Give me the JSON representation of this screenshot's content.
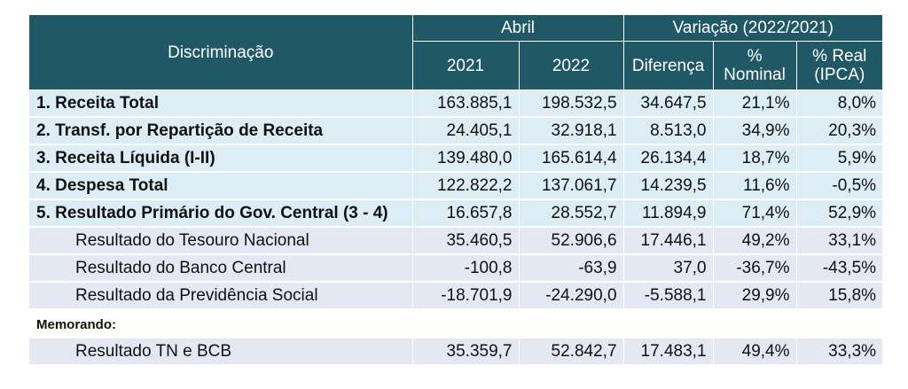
{
  "header": {
    "discriminacao": "Discriminação",
    "abril": "Abril",
    "variacao": "Variação (2022/2021)",
    "col_2021": "2021",
    "col_2022": "2022",
    "col_diferenca": "Diferença",
    "col_nominal": "% Nominal",
    "col_real": "% Real (IPCA)"
  },
  "rows": [
    {
      "label": "1. Receita Total",
      "v2021": "163.885,1",
      "v2022": "198.532,5",
      "diferenca": "34.647,5",
      "nominal": "21,1%",
      "real": "8,0%"
    },
    {
      "label": "2. Transf. por Repartição de Receita",
      "v2021": "24.405,1",
      "v2022": "32.918,1",
      "diferenca": "8.513,0",
      "nominal": "34,9%",
      "real": "20,3%"
    },
    {
      "label": "3. Receita Líquida (I-II)",
      "v2021": "139.480,0",
      "v2022": "165.614,4",
      "diferenca": "26.134,4",
      "nominal": "18,7%",
      "real": "5,9%"
    },
    {
      "label": "4. Despesa Total",
      "v2021": "122.822,2",
      "v2022": "137.061,7",
      "diferenca": "14.239,5",
      "nominal": "11,6%",
      "real": "-0,5%"
    },
    {
      "label": "5. Resultado Primário do Gov. Central (3 - 4)",
      "v2021": "16.657,8",
      "v2022": "28.552,7",
      "diferenca": "11.894,9",
      "nominal": "71,4%",
      "real": "52,9%"
    },
    {
      "label": "Resultado do Tesouro Nacional",
      "v2021": "35.460,5",
      "v2022": "52.906,6",
      "diferenca": "17.446,1",
      "nominal": "49,2%",
      "real": "33,1%"
    },
    {
      "label": "Resultado do Banco Central",
      "v2021": "-100,8",
      "v2022": "-63,9",
      "diferenca": "37,0",
      "nominal": "-36,7%",
      "real": "-43,5%"
    },
    {
      "label": "Resultado da Previdência Social",
      "v2021": "-18.701,9",
      "v2022": "-24.290,0",
      "diferenca": "-5.588,1",
      "nominal": "29,9%",
      "real": "15,8%"
    }
  ],
  "memo": {
    "label": "Memorando:",
    "row": {
      "label": "Resultado TN e BCB",
      "v2021": "35.359,7",
      "v2022": "52.842,7",
      "diferenca": "17.483,1",
      "nominal": "49,4%",
      "real": "33,3%"
    }
  }
}
